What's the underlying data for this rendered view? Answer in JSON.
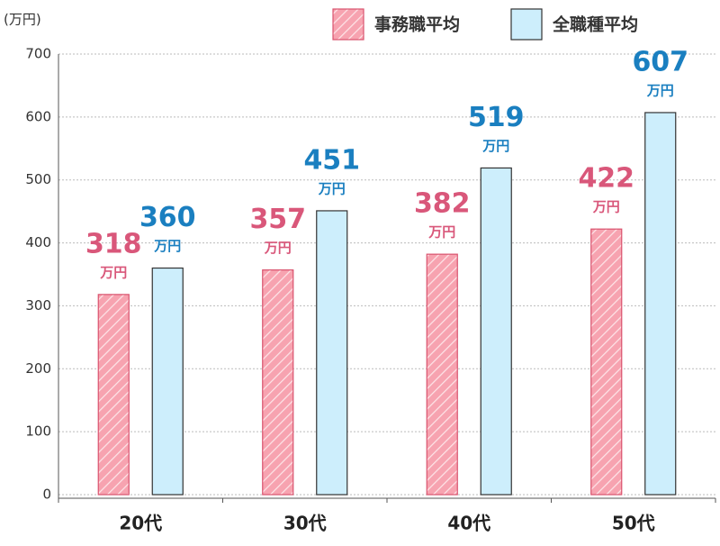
{
  "chart_data": {
    "type": "bar",
    "y_label": "(万円)",
    "value_unit": "万円",
    "categories": [
      "20代",
      "30代",
      "40代",
      "50代"
    ],
    "series": [
      {
        "name": "事務職平均",
        "color": "#f7a3b0",
        "label_color": "#d9577a",
        "values": [
          318,
          357,
          382,
          422
        ]
      },
      {
        "name": "全職種平均",
        "color": "#cdeefc",
        "label_color": "#1a7fc0",
        "values": [
          360,
          451,
          519,
          607
        ]
      }
    ],
    "ylim": [
      0,
      700
    ],
    "yticks": [
      0,
      100,
      200,
      300,
      400,
      500,
      600,
      700
    ],
    "grid": true,
    "legend": "top-right"
  }
}
